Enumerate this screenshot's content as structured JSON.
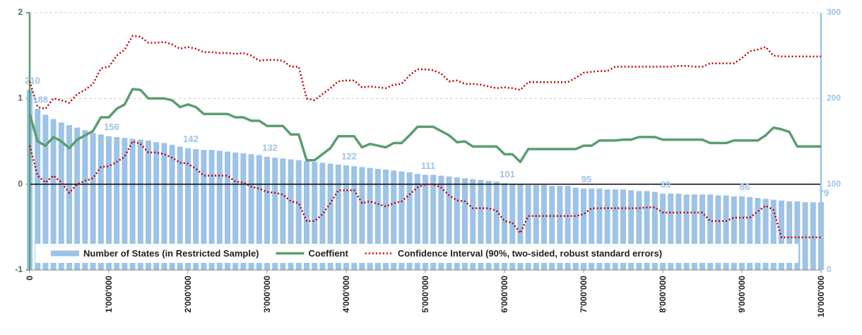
{
  "chart_data": {
    "type": "combo",
    "x": [
      0,
      100000,
      200000,
      300000,
      400000,
      500000,
      600000,
      700000,
      800000,
      900000,
      1000000,
      1100000,
      1200000,
      1300000,
      1400000,
      1500000,
      1600000,
      1700000,
      1800000,
      1900000,
      2000000,
      2100000,
      2200000,
      2300000,
      2400000,
      2500000,
      2600000,
      2700000,
      2800000,
      2900000,
      3000000,
      3100000,
      3200000,
      3300000,
      3400000,
      3500000,
      3600000,
      3700000,
      3800000,
      3900000,
      4000000,
      4100000,
      4200000,
      4300000,
      4400000,
      4500000,
      4600000,
      4700000,
      4800000,
      4900000,
      5000000,
      5100000,
      5200000,
      5300000,
      5400000,
      5500000,
      5600000,
      5700000,
      5800000,
      5900000,
      6000000,
      6100000,
      6200000,
      6300000,
      6400000,
      6500000,
      6600000,
      6700000,
      6800000,
      6900000,
      7000000,
      7100000,
      7200000,
      7300000,
      7400000,
      7500000,
      7600000,
      7700000,
      7800000,
      7900000,
      8000000,
      8100000,
      8200000,
      8300000,
      8400000,
      8500000,
      8600000,
      8700000,
      8800000,
      8900000,
      9000000,
      9100000,
      9200000,
      9300000,
      9400000,
      9500000,
      9600000,
      9700000,
      9800000,
      9900000,
      10000000
    ],
    "xlim": [
      0,
      10000000
    ],
    "xticks": [
      0,
      {
        "value": 1000000,
        "label": "1'000'000"
      },
      {
        "value": 2000000,
        "label": "2'000'000"
      },
      {
        "value": 3000000,
        "label": "3'000'000"
      },
      {
        "value": 4000000,
        "label": "4'000'000"
      },
      {
        "value": 5000000,
        "label": "5'000'000"
      },
      {
        "value": 6000000,
        "label": "6'000'000"
      },
      {
        "value": 7000000,
        "label": "7'000'000"
      },
      {
        "value": 8000000,
        "label": "8'000'000"
      },
      {
        "value": 9000000,
        "label": "9'000'000"
      },
      {
        "value": 10000000,
        "label": "10'000'000"
      }
    ],
    "ylim": [
      -1,
      2
    ],
    "yticks": [
      -1,
      0,
      1,
      2
    ],
    "y2lim": [
      0,
      300
    ],
    "y2ticks": [
      0,
      100,
      200,
      300
    ],
    "grid": true,
    "legend": "lower center",
    "series": [
      {
        "name": "Number of States (in Restricted Sample)",
        "type": "bar",
        "axis": "y2",
        "color": "#9dc3e6",
        "values": [
          210,
          188,
          181,
          176,
          172,
          169,
          166,
          163,
          160,
          158,
          156,
          155,
          154,
          153,
          152,
          151,
          149,
          148,
          146,
          144,
          142,
          141,
          140,
          140,
          139,
          138,
          137,
          136,
          135,
          134,
          132,
          131,
          130,
          129,
          128,
          127,
          126,
          125,
          124,
          123,
          122,
          121,
          120,
          119,
          118,
          117,
          116,
          115,
          114,
          112,
          111,
          111,
          110,
          109,
          108,
          107,
          106,
          105,
          104,
          103,
          101,
          100,
          100,
          99,
          99,
          99,
          98,
          98,
          98,
          96,
          95,
          95,
          95,
          94,
          94,
          94,
          93,
          92,
          92,
          91,
          89,
          89,
          89,
          88,
          88,
          88,
          88,
          87,
          87,
          86,
          86,
          85,
          84,
          83,
          82,
          81,
          80,
          80,
          79,
          79,
          79
        ],
        "value_labels": [
          "210",
          "188",
          null,
          null,
          null,
          null,
          null,
          null,
          null,
          null,
          "156",
          null,
          null,
          null,
          null,
          null,
          null,
          null,
          null,
          null,
          "142",
          null,
          null,
          null,
          null,
          null,
          null,
          null,
          null,
          null,
          "132",
          null,
          null,
          null,
          null,
          null,
          null,
          null,
          null,
          null,
          "122",
          null,
          null,
          null,
          null,
          null,
          null,
          null,
          null,
          null,
          "111",
          null,
          null,
          null,
          null,
          null,
          null,
          null,
          null,
          null,
          "101",
          null,
          null,
          null,
          null,
          null,
          null,
          null,
          null,
          null,
          "95",
          null,
          null,
          null,
          null,
          null,
          null,
          null,
          null,
          null,
          "89",
          null,
          null,
          null,
          null,
          null,
          null,
          null,
          null,
          null,
          "86",
          null,
          null,
          null,
          null,
          null,
          null,
          null,
          null,
          null,
          "79"
        ]
      },
      {
        "name": "Coeffient",
        "type": "line",
        "color": "#5a9e6e",
        "values": [
          0.82,
          0.5,
          0.45,
          0.55,
          0.5,
          0.42,
          0.52,
          0.57,
          0.62,
          0.78,
          0.78,
          0.88,
          0.93,
          1.11,
          1.1,
          1.0,
          1.0,
          1.0,
          0.98,
          0.9,
          0.93,
          0.9,
          0.82,
          0.82,
          0.82,
          0.82,
          0.78,
          0.78,
          0.74,
          0.74,
          0.68,
          0.68,
          0.68,
          0.58,
          0.58,
          0.28,
          0.28,
          0.35,
          0.42,
          0.56,
          0.56,
          0.56,
          0.43,
          0.47,
          0.45,
          0.43,
          0.48,
          0.48,
          0.57,
          0.67,
          0.67,
          0.67,
          0.62,
          0.57,
          0.49,
          0.5,
          0.44,
          0.44,
          0.44,
          0.44,
          0.35,
          0.35,
          0.26,
          0.41,
          0.41,
          0.41,
          0.41,
          0.41,
          0.41,
          0.41,
          0.45,
          0.45,
          0.51,
          0.51,
          0.51,
          0.52,
          0.52,
          0.55,
          0.55,
          0.55,
          0.52,
          0.52,
          0.52,
          0.52,
          0.52,
          0.52,
          0.48,
          0.48,
          0.48,
          0.51,
          0.51,
          0.51,
          0.51,
          0.57,
          0.66,
          0.64,
          0.61,
          0.44,
          0.44,
          0.44,
          0.44
        ]
      },
      {
        "name": "Confidence Interval (90%, two-sided, robust standard errors)",
        "type": "band",
        "color": "#c00000",
        "upper": [
          1.2,
          0.9,
          0.88,
          1.0,
          0.98,
          0.95,
          1.05,
          1.1,
          1.17,
          1.35,
          1.37,
          1.5,
          1.57,
          1.73,
          1.72,
          1.65,
          1.65,
          1.66,
          1.63,
          1.58,
          1.6,
          1.58,
          1.54,
          1.54,
          1.53,
          1.53,
          1.52,
          1.53,
          1.5,
          1.44,
          1.45,
          1.45,
          1.44,
          1.37,
          1.37,
          1.0,
          0.98,
          1.05,
          1.12,
          1.2,
          1.21,
          1.21,
          1.13,
          1.14,
          1.13,
          1.12,
          1.16,
          1.17,
          1.27,
          1.34,
          1.34,
          1.33,
          1.29,
          1.2,
          1.21,
          1.17,
          1.17,
          1.16,
          1.14,
          1.12,
          1.13,
          1.12,
          1.1,
          1.19,
          1.19,
          1.19,
          1.19,
          1.19,
          1.19,
          1.24,
          1.3,
          1.31,
          1.32,
          1.32,
          1.37,
          1.37,
          1.37,
          1.37,
          1.37,
          1.37,
          1.37,
          1.37,
          1.38,
          1.38,
          1.37,
          1.37,
          1.41,
          1.41,
          1.41,
          1.41,
          1.47,
          1.55,
          1.57,
          1.6,
          1.5,
          1.49,
          1.49,
          1.49,
          1.49,
          1.49,
          1.49
        ],
        "lower": [
          0.45,
          0.1,
          0.02,
          0.1,
          0.02,
          -0.1,
          0.0,
          0.04,
          0.07,
          0.2,
          0.21,
          0.26,
          0.32,
          0.5,
          0.47,
          0.37,
          0.37,
          0.35,
          0.31,
          0.25,
          0.24,
          0.18,
          0.1,
          0.1,
          0.1,
          0.1,
          0.03,
          0.02,
          -0.03,
          -0.05,
          -0.09,
          -0.1,
          -0.12,
          -0.2,
          -0.22,
          -0.43,
          -0.43,
          -0.35,
          -0.22,
          -0.07,
          -0.07,
          -0.07,
          -0.22,
          -0.2,
          -0.23,
          -0.26,
          -0.22,
          -0.2,
          -0.12,
          -0.04,
          0.0,
          0.0,
          -0.04,
          -0.13,
          -0.19,
          -0.2,
          -0.28,
          -0.28,
          -0.28,
          -0.31,
          -0.43,
          -0.45,
          -0.57,
          -0.37,
          -0.37,
          -0.37,
          -0.37,
          -0.37,
          -0.37,
          -0.37,
          -0.35,
          -0.28,
          -0.28,
          -0.28,
          -0.28,
          -0.28,
          -0.28,
          -0.28,
          -0.27,
          -0.27,
          -0.33,
          -0.33,
          -0.33,
          -0.33,
          -0.33,
          -0.33,
          -0.43,
          -0.43,
          -0.43,
          -0.39,
          -0.39,
          -0.39,
          -0.32,
          -0.25,
          -0.3,
          -0.62,
          -0.62,
          -0.62,
          -0.62,
          -0.62,
          -0.62
        ]
      }
    ]
  }
}
